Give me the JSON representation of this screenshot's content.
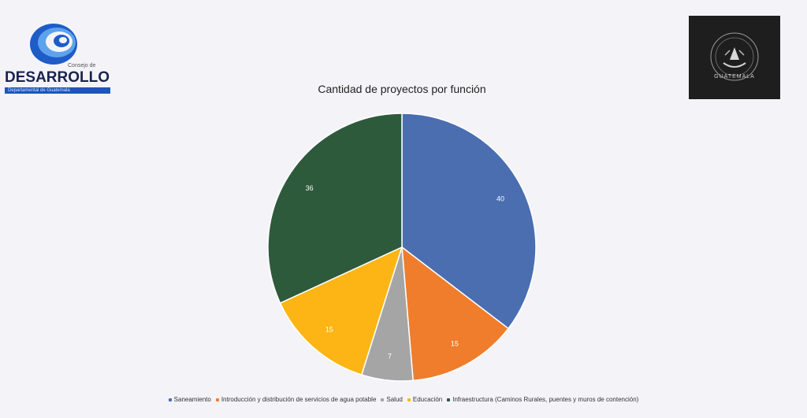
{
  "header": {
    "logo_small": "Consejo de",
    "logo_word": "DESARROLLO",
    "logo_bar": "Departamental de Guatemala",
    "emblem_text": "GUATEMALA"
  },
  "chart_data": {
    "type": "pie",
    "title": "Cantidad de proyectos por función",
    "slices": [
      {
        "label": "Saneamiento",
        "value": 40,
        "color": "#4a6eb0"
      },
      {
        "label": "Introducción y distribución de servicios de agua potable",
        "value": 15,
        "color": "#ef7d2c"
      },
      {
        "label": "Salud",
        "value": 7,
        "color": "#a5a5a5"
      },
      {
        "label": "Educación",
        "value": 15,
        "color": "#fcb514"
      },
      {
        "label": "Infraestructura (Caminos Rurales, puentes y muros de contención)",
        "value": 36,
        "color": "#2e5a3c"
      }
    ],
    "start_angle": "top",
    "direction": "clockwise",
    "legend_position": "bottom"
  }
}
